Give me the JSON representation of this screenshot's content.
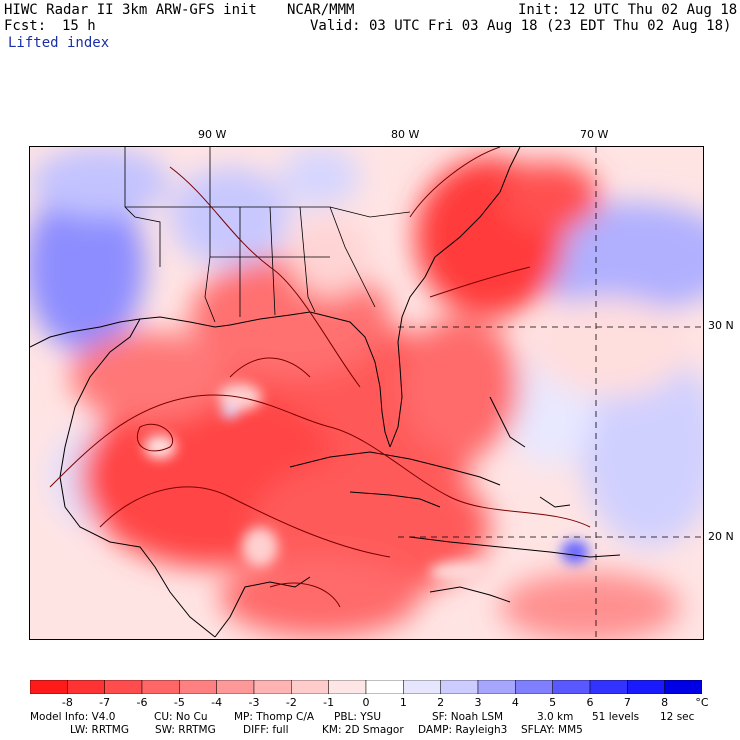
{
  "header": {
    "model_title": "HIWC Radar II 3km ARW-GFS init",
    "org": "NCAR/MMM",
    "init": "Init: 12 UTC Thu 02 Aug 18",
    "fcst_label": "Fcst:",
    "fcst_value": "15 h",
    "valid": "Valid: 03 UTC Fri 03 Aug 18 (23 EDT Thu 02 Aug 18)",
    "field": "Lifted index"
  },
  "map": {
    "lon_labels": [
      "90 W",
      "80 W",
      "70 W"
    ],
    "lat_labels": [
      "30 N",
      "20 N"
    ]
  },
  "colorbar": {
    "labels": [
      "-8",
      "-7",
      "-6",
      "-5",
      "-4",
      "-3",
      "-2",
      "-1",
      "0",
      "1",
      "2",
      "3",
      "4",
      "5",
      "6",
      "7",
      "8"
    ],
    "unit": "°C",
    "colors": [
      "#ff1a1a",
      "#ff3333",
      "#ff4d4d",
      "#ff6666",
      "#ff8080",
      "#ff9999",
      "#ffb3b3",
      "#ffcccc",
      "#ffe6e6",
      "#ffffff",
      "#e6e6ff",
      "#ccccff",
      "#a6a6ff",
      "#8080ff",
      "#5959ff",
      "#3333ff",
      "#1a1aff",
      "#0000e6"
    ]
  },
  "footer": {
    "line1": [
      "Model Info: V4.0",
      "CU: No Cu",
      "MP: Thomp C/A",
      "PBL: YSU",
      "SF: Noah LSM",
      "3.0 km",
      "51 levels",
      "12 sec"
    ],
    "line2": [
      "LW: RRTMG",
      "SW: RRTMG",
      "DIFF: full",
      "KM: 2D Smagor",
      "DAMP: Rayleigh3",
      "SFLAY: MM5"
    ]
  }
}
